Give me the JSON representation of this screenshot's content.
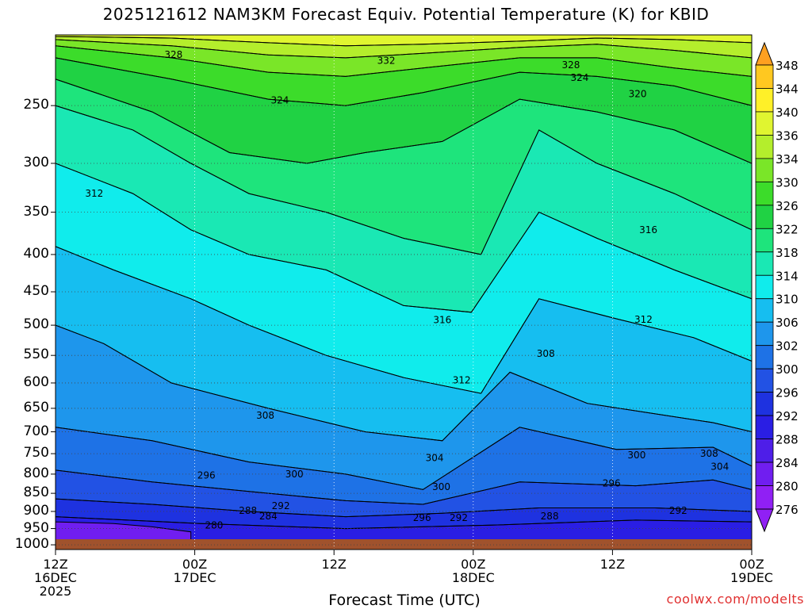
{
  "title": "2025121612 NAM3KM Forecast Equiv. Potential Temperature (K) for KBID",
  "xlabel": "Forecast Time (UTC)",
  "credit": "coolwx.com/modelts",
  "chart_data": {
    "type": "contour",
    "y_axis": {
      "label": "",
      "ticks": [
        250,
        300,
        350,
        400,
        450,
        500,
        550,
        600,
        650,
        700,
        750,
        800,
        850,
        900,
        950,
        1000
      ],
      "range": [
        1015,
        200
      ],
      "scale": "log-pressure"
    },
    "x_axis": {
      "ticks": [
        {
          "time": "12Z",
          "date": "16DEC",
          "year": "2025"
        },
        {
          "time": "00Z",
          "date": "17DEC",
          "year": ""
        },
        {
          "time": "12Z",
          "date": "",
          "year": ""
        },
        {
          "time": "00Z",
          "date": "18DEC",
          "year": ""
        },
        {
          "time": "12Z",
          "date": "",
          "year": ""
        },
        {
          "time": "00Z",
          "date": "19DEC",
          "year": ""
        }
      ]
    },
    "colorbar": {
      "labels": [
        "348",
        "344",
        "340",
        "336",
        "334",
        "330",
        "326",
        "322",
        "318",
        "314",
        "310",
        "306",
        "302",
        "300",
        "296",
        "292",
        "288",
        "284",
        "280",
        "276"
      ],
      "colors": [
        "#ffa020",
        "#ffc820",
        "#fff028",
        "#e0f530",
        "#b4ee2c",
        "#7ae628",
        "#3cdc2a",
        "#20d244",
        "#1ee47c",
        "#1ae8b4",
        "#10ecec",
        "#16bef0",
        "#1e96ec",
        "#1e72e6",
        "#2252e4",
        "#1e32e0",
        "#2a1ee4",
        "#4e1ee8",
        "#701ef0",
        "#9020f4"
      ]
    },
    "contour_labels": [
      {
        "value": "328",
        "hour": 12.2,
        "p": 213
      },
      {
        "value": "332",
        "hour": 34.2,
        "p": 217
      },
      {
        "value": "328",
        "hour": 53.3,
        "p": 220
      },
      {
        "value": "324",
        "hour": 54.2,
        "p": 229
      },
      {
        "value": "324",
        "hour": 23.2,
        "p": 246
      },
      {
        "value": "320",
        "hour": 60.2,
        "p": 241
      },
      {
        "value": "312",
        "hour": 4.0,
        "p": 330
      },
      {
        "value": "316",
        "hour": 61.3,
        "p": 370
      },
      {
        "value": "316",
        "hour": 40.0,
        "p": 492
      },
      {
        "value": "312",
        "hour": 60.8,
        "p": 491
      },
      {
        "value": "308",
        "hour": 50.7,
        "p": 547
      },
      {
        "value": "312",
        "hour": 42.0,
        "p": 595
      },
      {
        "value": "308",
        "hour": 21.7,
        "p": 665
      },
      {
        "value": "304",
        "hour": 39.2,
        "p": 760
      },
      {
        "value": "300",
        "hour": 60.1,
        "p": 754
      },
      {
        "value": "308",
        "hour": 67.6,
        "p": 750
      },
      {
        "value": "304",
        "hour": 68.7,
        "p": 781
      },
      {
        "value": "296",
        "hour": 15.6,
        "p": 803
      },
      {
        "value": "300",
        "hour": 24.7,
        "p": 800
      },
      {
        "value": "296",
        "hour": 57.5,
        "p": 824
      },
      {
        "value": "300",
        "hour": 39.9,
        "p": 833
      },
      {
        "value": "292",
        "hour": 23.3,
        "p": 884
      },
      {
        "value": "288",
        "hour": 19.9,
        "p": 898
      },
      {
        "value": "284",
        "hour": 22.0,
        "p": 914
      },
      {
        "value": "292",
        "hour": 64.4,
        "p": 898
      },
      {
        "value": "296",
        "hour": 37.9,
        "p": 918
      },
      {
        "value": "292",
        "hour": 41.7,
        "p": 918
      },
      {
        "value": "288",
        "hour": 51.1,
        "p": 914
      },
      {
        "value": "280",
        "hour": 16.4,
        "p": 940
      }
    ],
    "regions": [
      {
        "color": "#2a1ee4",
        "pts": [
          [
            0,
            1015
          ],
          [
            72,
            1015
          ],
          [
            72,
            930
          ],
          [
            60,
            925
          ],
          [
            45,
            940
          ],
          [
            30,
            950
          ],
          [
            15,
            935
          ],
          [
            0,
            915
          ]
        ]
      },
      {
        "color": "#701ef0",
        "pts": [
          [
            0,
            1015
          ],
          [
            14,
            1015
          ],
          [
            14,
            960
          ],
          [
            10,
            945
          ],
          [
            6,
            935
          ],
          [
            0,
            930
          ]
        ]
      },
      {
        "color": "#1e32e0",
        "pts": [
          [
            0,
            915
          ],
          [
            15,
            935
          ],
          [
            30,
            950
          ],
          [
            45,
            940
          ],
          [
            60,
            925
          ],
          [
            72,
            930
          ],
          [
            72,
            900
          ],
          [
            62,
            890
          ],
          [
            50,
            890
          ],
          [
            40,
            905
          ],
          [
            30,
            915
          ],
          [
            20,
            900
          ],
          [
            10,
            880
          ],
          [
            0,
            865
          ]
        ]
      },
      {
        "color": "#2252e4",
        "pts": [
          [
            0,
            865
          ],
          [
            10,
            880
          ],
          [
            20,
            900
          ],
          [
            30,
            915
          ],
          [
            40,
            905
          ],
          [
            50,
            890
          ],
          [
            62,
            890
          ],
          [
            72,
            900
          ],
          [
            72,
            840
          ],
          [
            68,
            815
          ],
          [
            60,
            830
          ],
          [
            48,
            820
          ],
          [
            38,
            880
          ],
          [
            30,
            870
          ],
          [
            20,
            845
          ],
          [
            10,
            820
          ],
          [
            0,
            790
          ]
        ]
      },
      {
        "color": "#1e72e6",
        "pts": [
          [
            0,
            790
          ],
          [
            10,
            820
          ],
          [
            20,
            845
          ],
          [
            30,
            870
          ],
          [
            38,
            880
          ],
          [
            48,
            820
          ],
          [
            60,
            830
          ],
          [
            68,
            815
          ],
          [
            72,
            840
          ],
          [
            72,
            780
          ],
          [
            68,
            735
          ],
          [
            58,
            740
          ],
          [
            48,
            690
          ],
          [
            38,
            840
          ],
          [
            30,
            800
          ],
          [
            20,
            770
          ],
          [
            10,
            720
          ],
          [
            0,
            690
          ]
        ]
      },
      {
        "color": "#1e96ec",
        "pts": [
          [
            0,
            690
          ],
          [
            10,
            720
          ],
          [
            20,
            770
          ],
          [
            30,
            800
          ],
          [
            38,
            840
          ],
          [
            48,
            690
          ],
          [
            58,
            740
          ],
          [
            68,
            735
          ],
          [
            72,
            780
          ],
          [
            72,
            700
          ],
          [
            68,
            680
          ],
          [
            55,
            640
          ],
          [
            47,
            580
          ],
          [
            40,
            720
          ],
          [
            32,
            700
          ],
          [
            22,
            650
          ],
          [
            12,
            600
          ],
          [
            5,
            530
          ],
          [
            0,
            500
          ]
        ]
      },
      {
        "color": "#16bef0",
        "pts": [
          [
            0,
            500
          ],
          [
            5,
            530
          ],
          [
            12,
            600
          ],
          [
            22,
            650
          ],
          [
            32,
            700
          ],
          [
            40,
            720
          ],
          [
            47,
            580
          ],
          [
            55,
            640
          ],
          [
            68,
            680
          ],
          [
            72,
            700
          ],
          [
            72,
            560
          ],
          [
            66,
            520
          ],
          [
            58,
            490
          ],
          [
            50,
            460
          ],
          [
            44,
            620
          ],
          [
            36,
            590
          ],
          [
            28,
            550
          ],
          [
            20,
            500
          ],
          [
            14,
            460
          ],
          [
            6,
            420
          ],
          [
            0,
            390
          ]
        ]
      },
      {
        "color": "#10ecec",
        "pts": [
          [
            0,
            390
          ],
          [
            6,
            420
          ],
          [
            14,
            460
          ],
          [
            20,
            500
          ],
          [
            28,
            550
          ],
          [
            36,
            590
          ],
          [
            44,
            620
          ],
          [
            50,
            460
          ],
          [
            58,
            490
          ],
          [
            66,
            520
          ],
          [
            72,
            560
          ],
          [
            72,
            460
          ],
          [
            64,
            420
          ],
          [
            56,
            380
          ],
          [
            50,
            350
          ],
          [
            43,
            480
          ],
          [
            36,
            470
          ],
          [
            28,
            420
          ],
          [
            20,
            400
          ],
          [
            14,
            370
          ],
          [
            8,
            330
          ],
          [
            0,
            300
          ]
        ]
      },
      {
        "color": "#1ae8b4",
        "pts": [
          [
            0,
            300
          ],
          [
            8,
            330
          ],
          [
            14,
            370
          ],
          [
            20,
            400
          ],
          [
            28,
            420
          ],
          [
            36,
            470
          ],
          [
            43,
            480
          ],
          [
            50,
            350
          ],
          [
            56,
            380
          ],
          [
            64,
            420
          ],
          [
            72,
            460
          ],
          [
            72,
            370
          ],
          [
            64,
            330
          ],
          [
            56,
            300
          ],
          [
            50,
            270
          ],
          [
            44,
            400
          ],
          [
            36,
            380
          ],
          [
            28,
            350
          ],
          [
            20,
            330
          ],
          [
            14,
            300
          ],
          [
            8,
            270
          ],
          [
            0,
            250
          ]
        ]
      },
      {
        "color": "#1ee47c",
        "pts": [
          [
            0,
            250
          ],
          [
            8,
            270
          ],
          [
            14,
            300
          ],
          [
            20,
            330
          ],
          [
            28,
            350
          ],
          [
            36,
            380
          ],
          [
            44,
            400
          ],
          [
            50,
            270
          ],
          [
            56,
            300
          ],
          [
            64,
            330
          ],
          [
            72,
            370
          ],
          [
            72,
            300
          ],
          [
            64,
            270
          ],
          [
            56,
            255
          ],
          [
            48,
            245
          ],
          [
            40,
            280
          ],
          [
            32,
            290
          ],
          [
            26,
            300
          ],
          [
            18,
            290
          ],
          [
            10,
            255
          ],
          [
            0,
            230
          ]
        ]
      },
      {
        "color": "#20d244",
        "pts": [
          [
            0,
            230
          ],
          [
            10,
            255
          ],
          [
            18,
            290
          ],
          [
            26,
            300
          ],
          [
            32,
            290
          ],
          [
            40,
            280
          ],
          [
            48,
            245
          ],
          [
            56,
            255
          ],
          [
            64,
            270
          ],
          [
            72,
            300
          ],
          [
            72,
            250
          ],
          [
            64,
            235
          ],
          [
            56,
            228
          ],
          [
            48,
            225
          ],
          [
            38,
            240
          ],
          [
            30,
            250
          ],
          [
            22,
            245
          ],
          [
            12,
            230
          ],
          [
            0,
            215
          ]
        ]
      },
      {
        "color": "#3cdc2a",
        "pts": [
          [
            0,
            215
          ],
          [
            12,
            230
          ],
          [
            22,
            245
          ],
          [
            30,
            250
          ],
          [
            38,
            240
          ],
          [
            48,
            225
          ],
          [
            56,
            228
          ],
          [
            64,
            235
          ],
          [
            72,
            250
          ],
          [
            72,
            228
          ],
          [
            64,
            222
          ],
          [
            56,
            215
          ],
          [
            48,
            215
          ],
          [
            38,
            222
          ],
          [
            30,
            228
          ],
          [
            22,
            225
          ],
          [
            12,
            215
          ],
          [
            0,
            207
          ]
        ]
      },
      {
        "color": "#7ae628",
        "pts": [
          [
            0,
            207
          ],
          [
            12,
            215
          ],
          [
            22,
            225
          ],
          [
            30,
            228
          ],
          [
            38,
            222
          ],
          [
            48,
            215
          ],
          [
            56,
            215
          ],
          [
            64,
            222
          ],
          [
            72,
            228
          ],
          [
            72,
            215
          ],
          [
            64,
            210
          ],
          [
            56,
            206
          ],
          [
            48,
            208
          ],
          [
            38,
            212
          ],
          [
            30,
            215
          ],
          [
            22,
            213
          ],
          [
            12,
            207
          ],
          [
            0,
            203
          ]
        ]
      },
      {
        "color": "#b4ee2c",
        "pts": [
          [
            0,
            203
          ],
          [
            12,
            207
          ],
          [
            22,
            213
          ],
          [
            30,
            215
          ],
          [
            38,
            212
          ],
          [
            48,
            208
          ],
          [
            56,
            206
          ],
          [
            64,
            210
          ],
          [
            72,
            215
          ],
          [
            72,
            205
          ],
          [
            64,
            203
          ],
          [
            56,
            202
          ],
          [
            48,
            204
          ],
          [
            38,
            206
          ],
          [
            30,
            207
          ],
          [
            22,
            205
          ],
          [
            12,
            202
          ],
          [
            0,
            201
          ]
        ]
      },
      {
        "color": "#e0f530",
        "pts": [
          [
            0,
            201
          ],
          [
            12,
            202
          ],
          [
            22,
            205
          ],
          [
            30,
            207
          ],
          [
            38,
            206
          ],
          [
            48,
            204
          ],
          [
            56,
            202
          ],
          [
            64,
            203
          ],
          [
            72,
            205
          ],
          [
            72,
            200
          ],
          [
            0,
            200
          ]
        ]
      }
    ]
  }
}
